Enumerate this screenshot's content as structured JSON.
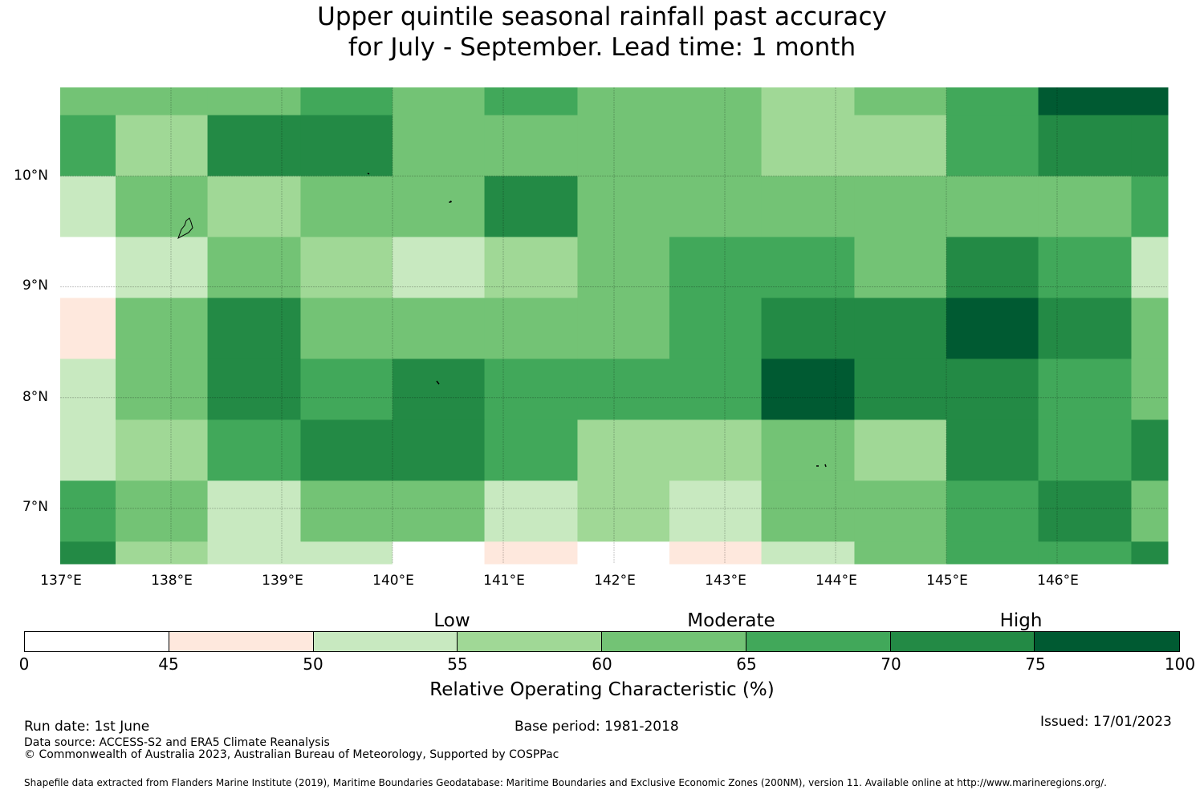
{
  "title_line1": "Upper quintile seasonal rainfall past accuracy",
  "title_line2": "for July - September. Lead time: 1 month",
  "map": {
    "lon_range": [
      137.0,
      147.0
    ],
    "lat_range": [
      6.5,
      10.8
    ],
    "lon_ticks": [
      "137°E",
      "138°E",
      "139°E",
      "140°E",
      "141°E",
      "142°E",
      "143°E",
      "144°E",
      "145°E",
      "146°E"
    ],
    "lat_ticks": [
      "10°N",
      "9°N",
      "8°N",
      "7°N"
    ],
    "grid_cells": {
      "col_lon_edges": [
        137.0,
        137.5,
        138.33,
        139.17,
        140.0,
        140.83,
        141.67,
        142.5,
        143.33,
        144.17,
        145.0,
        145.83,
        146.67,
        147.0
      ],
      "row_lat_edges": [
        10.8,
        10.55,
        10.0,
        9.45,
        8.9,
        8.35,
        7.8,
        7.25,
        6.7,
        6.5
      ],
      "rows": [
        [
          4,
          4,
          4,
          5,
          4,
          5,
          4,
          4,
          3,
          4,
          5,
          7,
          7
        ],
        [
          5,
          3,
          6,
          6,
          4,
          4,
          4,
          4,
          3,
          3,
          5,
          6,
          6
        ],
        [
          2,
          4,
          3,
          4,
          4,
          6,
          4,
          4,
          4,
          4,
          4,
          4,
          5
        ],
        [
          0,
          2,
          4,
          3,
          2,
          3,
          4,
          5,
          5,
          4,
          6,
          5,
          2
        ],
        [
          1,
          4,
          6,
          4,
          4,
          4,
          4,
          5,
          6,
          6,
          7,
          6,
          4
        ],
        [
          2,
          4,
          6,
          5,
          6,
          5,
          5,
          5,
          7,
          6,
          6,
          5,
          4
        ],
        [
          2,
          3,
          5,
          6,
          6,
          5,
          3,
          3,
          4,
          3,
          6,
          5,
          6
        ],
        [
          5,
          4,
          2,
          4,
          4,
          2,
          3,
          2,
          4,
          4,
          5,
          6,
          4
        ],
        [
          6,
          3,
          2,
          2,
          0,
          1,
          0,
          1,
          2,
          4,
          5,
          5,
          6
        ]
      ]
    }
  },
  "colorbar": {
    "bounds": [
      0,
      45,
      50,
      55,
      60,
      65,
      70,
      75,
      100
    ],
    "tick_labels": [
      "0",
      "45",
      "50",
      "55",
      "60",
      "65",
      "70",
      "75",
      "100"
    ],
    "colors": [
      "#ffffff",
      "#fee8dd",
      "#c8e9c0",
      "#a0d896",
      "#73c375",
      "#41a85a",
      "#238a45",
      "#005a32"
    ],
    "band_labels": {
      "low": "Low",
      "moderate": "Moderate",
      "high": "High"
    },
    "title": "Relative Operating Characteristic (%)"
  },
  "footer": {
    "run_date": "Run date: 1st June",
    "base_period": "Base period: 1981-2018",
    "issued": "Issued: 17/01/2023",
    "data_source": "Data source: ACCESS-S2 and ERA5 Climate Reanalysis",
    "copyright": "© Commonwealth of Australia 2023, Australian Bureau of Meteorology, Supported by COSPPac",
    "shapefile": "Shapefile data extracted from Flanders Marine Institute (2019), Maritime Boundaries Geodatabase: Maritime Boundaries and Exclusive Economic Zones (200NM), version 11. Available online at http://www.marineregions.org/."
  }
}
